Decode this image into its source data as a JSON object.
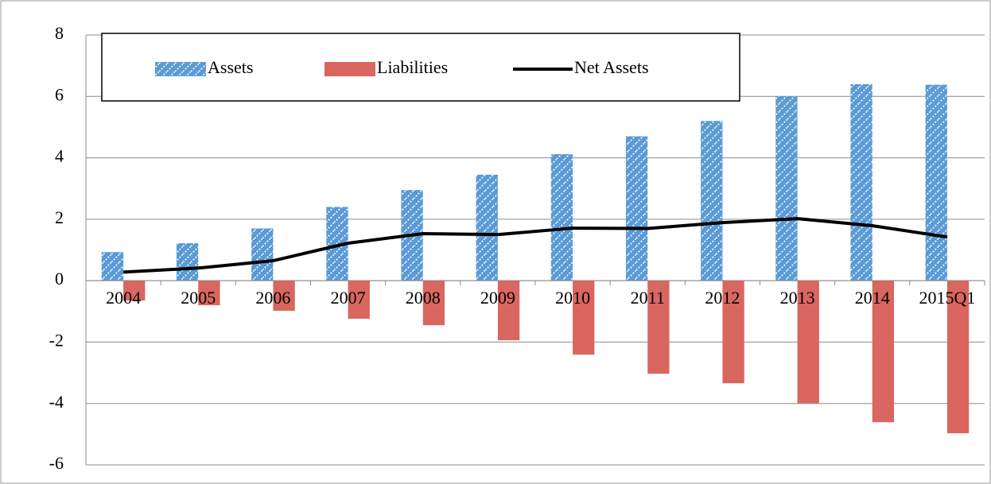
{
  "chart_data": {
    "type": "bar_line",
    "categories": [
      "2004",
      "2005",
      "2006",
      "2007",
      "2008",
      "2009",
      "2010",
      "2011",
      "2012",
      "2013",
      "2014",
      "2015Q1"
    ],
    "series": [
      {
        "name": "Assets",
        "type": "bar",
        "color": "#5b9bd5",
        "values": [
          0.93,
          1.22,
          1.7,
          2.4,
          2.95,
          3.45,
          4.12,
          4.7,
          5.2,
          6.0,
          6.4,
          6.38
        ]
      },
      {
        "name": "Liabilities",
        "type": "bar",
        "color": "#d9665f",
        "values": [
          -0.65,
          -0.8,
          -0.98,
          -1.24,
          -1.45,
          -1.94,
          -2.41,
          -3.03,
          -3.34,
          -3.99,
          -4.61,
          -4.97
        ]
      },
      {
        "name": "Net Assets",
        "type": "line",
        "color": "#000000",
        "values": [
          0.28,
          0.41,
          0.65,
          1.22,
          1.53,
          1.5,
          1.71,
          1.7,
          1.89,
          2.02,
          1.79,
          1.42
        ]
      }
    ],
    "ylim": [
      -6,
      8
    ],
    "yticks": [
      -6,
      -4,
      -2,
      0,
      2,
      4,
      6,
      8
    ],
    "grid": true,
    "legend": "top"
  }
}
